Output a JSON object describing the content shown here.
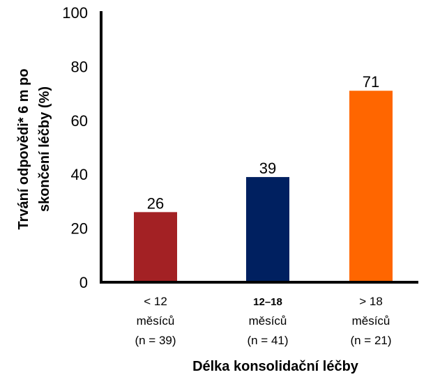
{
  "chart_data": {
    "type": "bar",
    "title": "",
    "xlabel": "Délka konsolidační léčby",
    "ylabel_lines": [
      "Trvání odpovědi* 6 m po",
      "skončení léčby (%)"
    ],
    "ylim": [
      0,
      100
    ],
    "yticks": [
      "0",
      "20",
      "40",
      "60",
      "80",
      "100"
    ],
    "ytick_values": [
      0,
      20,
      40,
      60,
      80,
      100
    ],
    "categories": [
      {
        "lines": [
          "< 12",
          "měsíců",
          "(n = 39)"
        ],
        "bold_first_line": false
      },
      {
        "lines": [
          "12–18",
          "měsíců",
          "(n = 41)"
        ],
        "bold_first_line": true
      },
      {
        "lines": [
          "> 18",
          "měsíců",
          "(n = 21)"
        ],
        "bold_first_line": false
      }
    ],
    "values": [
      26,
      39,
      71
    ],
    "value_labels": [
      "26",
      "39",
      "71"
    ],
    "colors": [
      "#A32124",
      "#002060",
      "#FF6600"
    ],
    "grid": false,
    "legend": "none"
  }
}
